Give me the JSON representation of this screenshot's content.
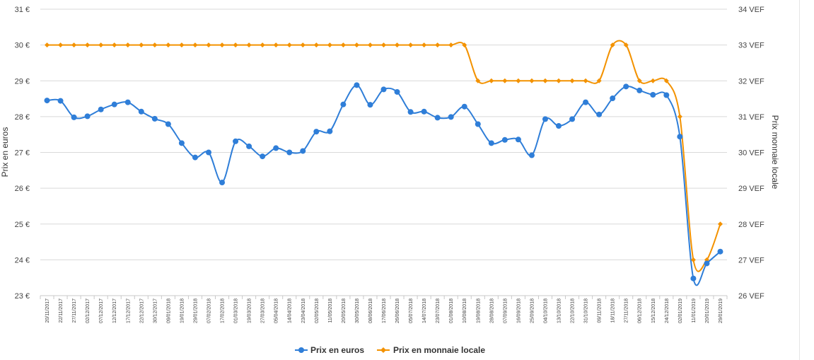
{
  "chart_data": {
    "type": "line",
    "y_left_label": "Prix en euros",
    "y_right_label": "Prix monnaie locale",
    "y_left_range": [
      23,
      31
    ],
    "y_right_range": [
      26,
      34
    ],
    "y_left_ticks": [
      "23 €",
      "24 €",
      "25 €",
      "26 €",
      "27 €",
      "28 €",
      "29 €",
      "30 €",
      "31 €"
    ],
    "y_right_ticks": [
      "26 VEF",
      "27 VEF",
      "28 VEF",
      "29 VEF",
      "30 VEF",
      "31 VEF",
      "32 VEF",
      "33 VEF",
      "34 VEF"
    ],
    "grid": true,
    "legend_position": "bottom",
    "x": [
      "20/11/2017",
      "22/11/2017",
      "27/11/2017",
      "02/12/2017",
      "07/12/2017",
      "12/12/2017",
      "17/12/2017",
      "22/12/2017",
      "30/12/2017",
      "09/01/2018",
      "19/01/2018",
      "29/01/2018",
      "07/02/2018",
      "17/02/2018",
      "01/03/2018",
      "19/03/2018",
      "27/03/2018",
      "05/04/2018",
      "14/04/2018",
      "23/04/2018",
      "02/05/2018",
      "11/05/2018",
      "20/05/2018",
      "30/05/2018",
      "08/06/2018",
      "17/06/2018",
      "26/06/2018",
      "05/07/2018",
      "14/07/2018",
      "23/07/2018",
      "01/08/2018",
      "10/08/2018",
      "19/08/2018",
      "28/08/2018",
      "07/09/2018",
      "16/09/2018",
      "25/09/2018",
      "04/10/2018",
      "13/10/2018",
      "22/10/2018",
      "31/10/2018",
      "09/11/2018",
      "18/11/2018",
      "27/11/2018",
      "06/12/2018",
      "15/12/2018",
      "24/12/2018",
      "02/01/2019",
      "11/01/2019",
      "20/01/2019",
      "29/01/2019"
    ],
    "series": [
      {
        "name": "Prix en euros",
        "color": "#2f7ed8",
        "axis": "left",
        "marker": "circle",
        "values": [
          28.45,
          28.44,
          27.98,
          28.01,
          28.2,
          28.34,
          28.4,
          28.14,
          27.94,
          27.79,
          27.26,
          26.86,
          27.0,
          26.16,
          27.31,
          27.17,
          26.89,
          27.12,
          27.0,
          27.04,
          27.58,
          27.59,
          28.34,
          28.88,
          28.33,
          28.76,
          28.69,
          28.13,
          28.14,
          27.97,
          27.99,
          28.28,
          27.79,
          27.26,
          27.35,
          27.36,
          26.92,
          27.93,
          27.74,
          27.93,
          28.4,
          28.06,
          28.51,
          28.84,
          28.73,
          28.61,
          28.6,
          27.44,
          23.48,
          23.9,
          24.23
        ]
      },
      {
        "name": "Prix en monnaie locale",
        "color": "#f39200",
        "axis": "right",
        "marker": "diamond",
        "values": [
          33,
          33,
          33,
          33,
          33,
          33,
          33,
          33,
          33,
          33,
          33,
          33,
          33,
          33,
          33,
          33,
          33,
          33,
          33,
          33,
          33,
          33,
          33,
          33,
          33,
          33,
          33,
          33,
          33,
          33,
          33,
          33,
          32,
          32,
          32,
          32,
          32,
          32,
          32,
          32,
          32,
          32,
          33,
          33,
          32,
          32,
          32,
          31,
          27,
          27,
          28
        ]
      }
    ]
  }
}
